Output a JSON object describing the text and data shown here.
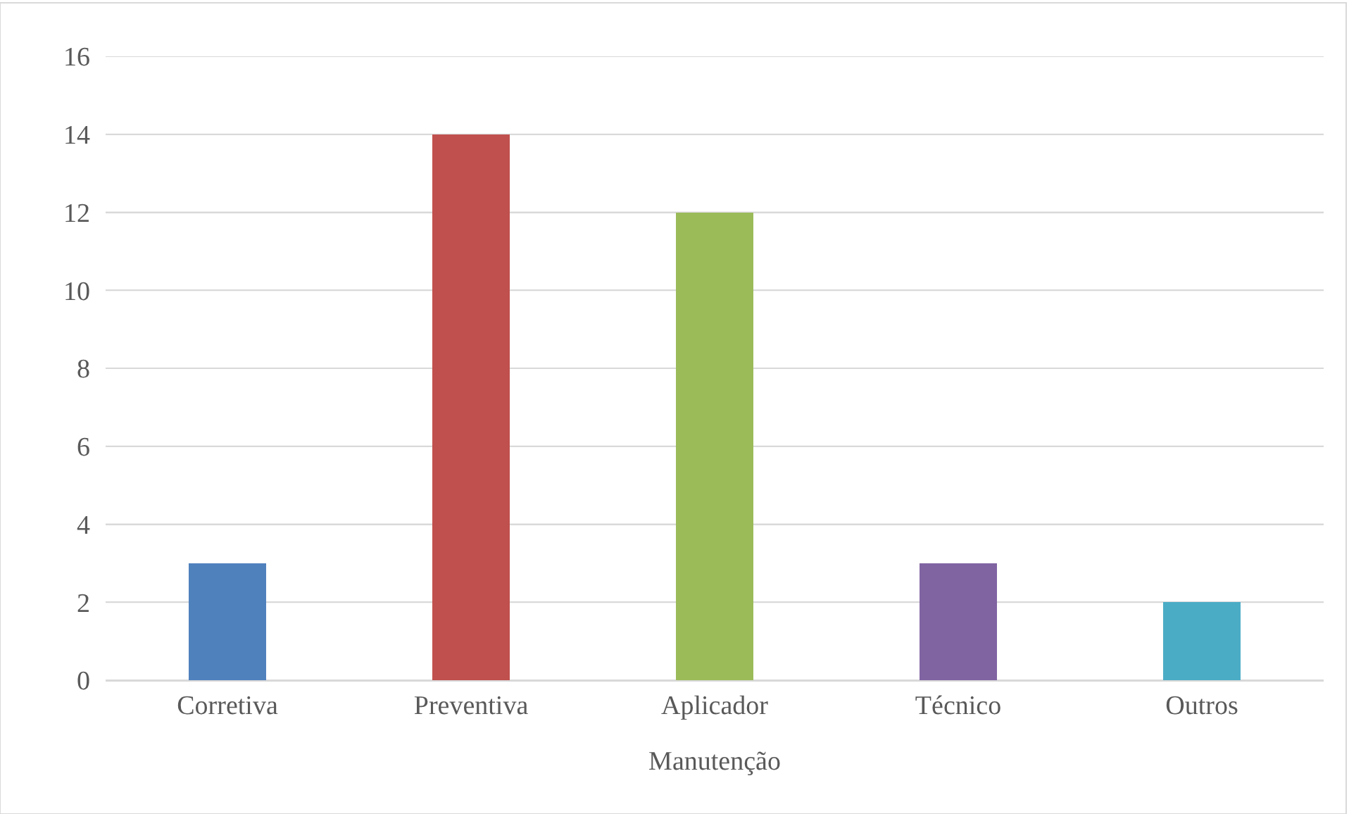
{
  "chart_data": {
    "type": "bar",
    "xlabel": "Manutenção",
    "categories": [
      "Corretiva",
      "Preventiva",
      "Aplicador",
      "Técnico",
      "Outros"
    ],
    "values": [
      3,
      14,
      12,
      3,
      2
    ],
    "colors": [
      "#4f81bd",
      "#c0504d",
      "#9bbb59",
      "#8064a2",
      "#4bacc6"
    ],
    "ylim": [
      0,
      16
    ],
    "yticks": [
      0,
      2,
      4,
      6,
      8,
      10,
      12,
      14,
      16
    ],
    "grid": "y"
  }
}
